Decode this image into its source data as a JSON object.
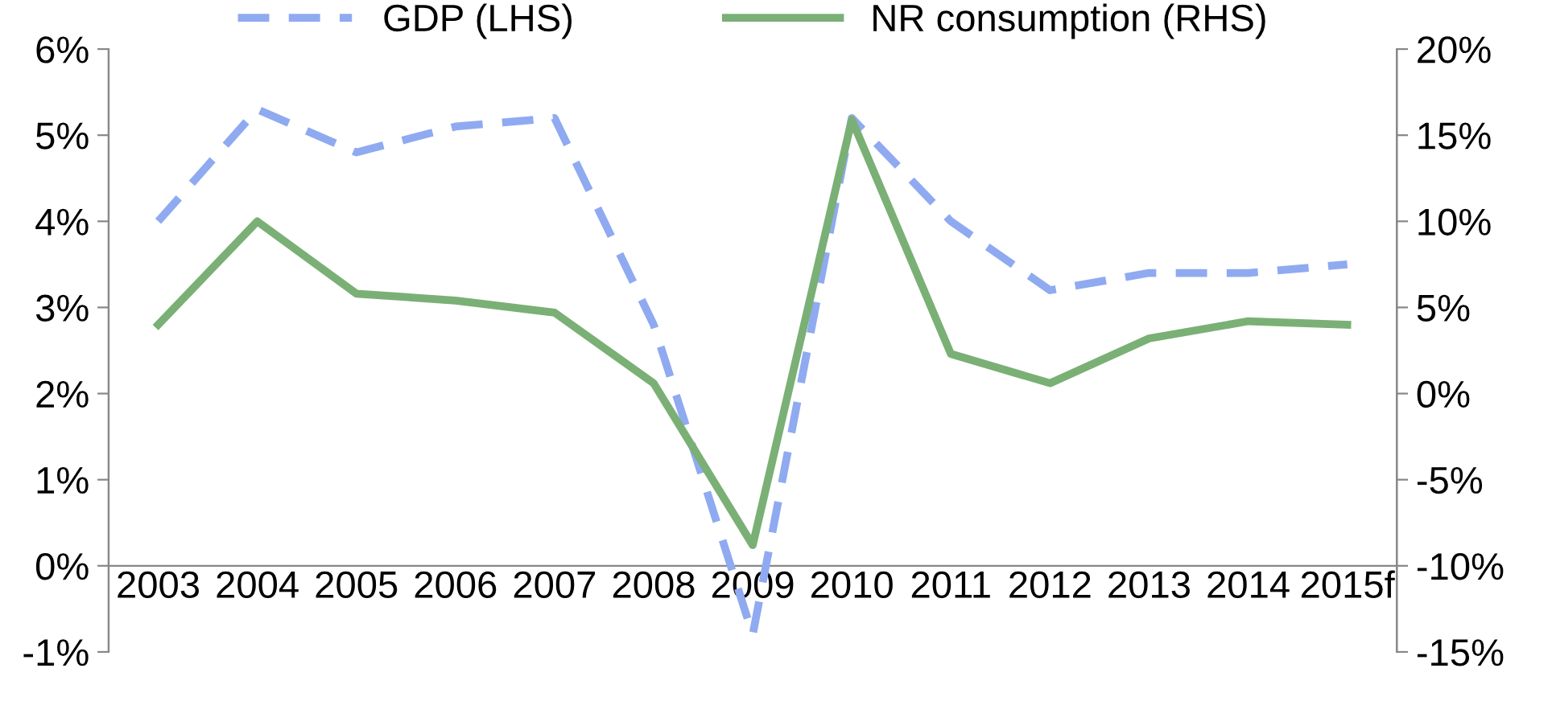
{
  "chart_data": {
    "type": "line",
    "categories": [
      "2003",
      "2004",
      "2005",
      "2006",
      "2007",
      "2008",
      "2009",
      "2010",
      "2011",
      "2012",
      "2013",
      "2014",
      "2015f"
    ],
    "series": [
      {
        "name": "GDP (LHS)",
        "color": "#8faaf0",
        "line_style": "dashed",
        "values": [
          4.0,
          5.3,
          4.8,
          5.1,
          5.2,
          2.8,
          -0.8,
          5.2,
          4.0,
          3.2,
          3.4,
          3.4,
          3.5
        ]
      },
      {
        "name": "NR consumption (RHS)",
        "color": "#7ab075",
        "line_style": "solid",
        "axis": "y2",
        "values": [
          4.0,
          10.0,
          5.8,
          5.4,
          4.7,
          0.6,
          -8.8,
          15.9,
          2.3,
          0.6,
          3.2,
          4.2,
          4.0
        ]
      }
    ],
    "ylim": [
      -1,
      6
    ],
    "yticks": [
      {
        "value": -1,
        "label": "-1%"
      },
      {
        "value": 0,
        "label": "0%"
      },
      {
        "value": 1,
        "label": "1%"
      },
      {
        "value": 2,
        "label": "2%"
      },
      {
        "value": 3,
        "label": "3%"
      },
      {
        "value": 4,
        "label": "4%"
      },
      {
        "value": 5,
        "label": "5%"
      },
      {
        "value": 6,
        "label": "6%"
      }
    ],
    "y2lim": [
      -15,
      20
    ],
    "y2ticks": [
      {
        "value": -15,
        "label": "-15%"
      },
      {
        "value": -10,
        "label": "-10%"
      },
      {
        "value": -5,
        "label": "-5%"
      },
      {
        "value": 0,
        "label": "0%"
      },
      {
        "value": 5,
        "label": "5%"
      },
      {
        "value": 10,
        "label": "10%"
      },
      {
        "value": 15,
        "label": "15%"
      },
      {
        "value": 20,
        "label": "20%"
      }
    ],
    "grid": false,
    "legend": "top",
    "marker": "none"
  }
}
